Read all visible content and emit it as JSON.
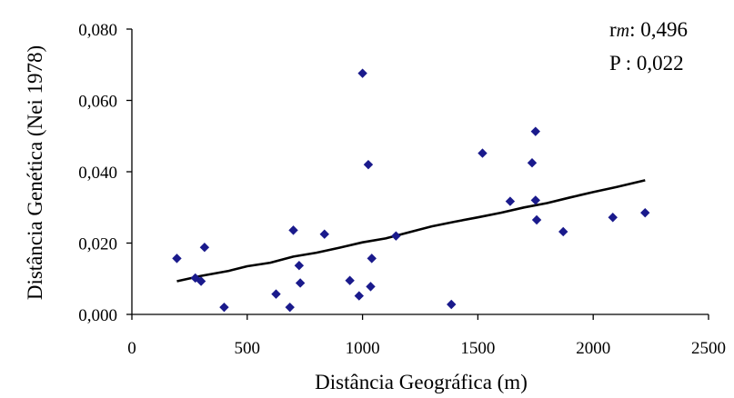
{
  "chart_data": {
    "type": "scatter",
    "xlabel": "Distância Geográfica (m)",
    "ylabel": "Distância Genética (Nei 1978)",
    "xlim": [
      0,
      2500
    ],
    "ylim": [
      0,
      0.08
    ],
    "x_ticks": [
      0,
      500,
      1000,
      1500,
      2000,
      2500
    ],
    "x_tick_labels": [
      "0",
      "500",
      "1000",
      "1500",
      "2000",
      "2500"
    ],
    "y_ticks": [
      0,
      0.02,
      0.04,
      0.06,
      0.08
    ],
    "y_tick_labels": [
      "0,000",
      "0,020",
      "0,040",
      "0,060",
      "0,080"
    ],
    "grid": false,
    "marker_color": "#1a1a8c",
    "trend_color": "#000000",
    "annotations": {
      "r_prefix": "r",
      "r_subscript": "m",
      "r_value": ": 0,496",
      "p_text": "P : 0,022"
    },
    "points": [
      {
        "x": 195,
        "y": 0.0157
      },
      {
        "x": 275,
        "y": 0.0102
      },
      {
        "x": 300,
        "y": 0.0093
      },
      {
        "x": 315,
        "y": 0.0188
      },
      {
        "x": 400,
        "y": 0.002
      },
      {
        "x": 625,
        "y": 0.0057
      },
      {
        "x": 685,
        "y": 0.002
      },
      {
        "x": 700,
        "y": 0.0236
      },
      {
        "x": 725,
        "y": 0.0137
      },
      {
        "x": 730,
        "y": 0.0088
      },
      {
        "x": 835,
        "y": 0.0225
      },
      {
        "x": 945,
        "y": 0.0095
      },
      {
        "x": 985,
        "y": 0.0052
      },
      {
        "x": 1000,
        "y": 0.0676
      },
      {
        "x": 1025,
        "y": 0.042
      },
      {
        "x": 1035,
        "y": 0.0078
      },
      {
        "x": 1040,
        "y": 0.0157
      },
      {
        "x": 1145,
        "y": 0.022
      },
      {
        "x": 1385,
        "y": 0.0028
      },
      {
        "x": 1520,
        "y": 0.0452
      },
      {
        "x": 1640,
        "y": 0.0317
      },
      {
        "x": 1735,
        "y": 0.0425
      },
      {
        "x": 1750,
        "y": 0.0513
      },
      {
        "x": 1750,
        "y": 0.032
      },
      {
        "x": 1755,
        "y": 0.0265
      },
      {
        "x": 1870,
        "y": 0.0232
      },
      {
        "x": 2085,
        "y": 0.0272
      },
      {
        "x": 2225,
        "y": 0.0285
      }
    ],
    "trendline": {
      "x": [
        195,
        300,
        420,
        500,
        600,
        700,
        800,
        900,
        1000,
        1100,
        1200,
        1300,
        1400,
        1500,
        1600,
        1700,
        1800,
        1900,
        2000,
        2100,
        2225
      ],
      "y": [
        0.0093,
        0.0108,
        0.0122,
        0.0135,
        0.0145,
        0.0162,
        0.0173,
        0.0187,
        0.0202,
        0.0213,
        0.023,
        0.0247,
        0.026,
        0.0272,
        0.0285,
        0.03,
        0.0312,
        0.0328,
        0.0343,
        0.0357,
        0.0376
      ]
    }
  }
}
